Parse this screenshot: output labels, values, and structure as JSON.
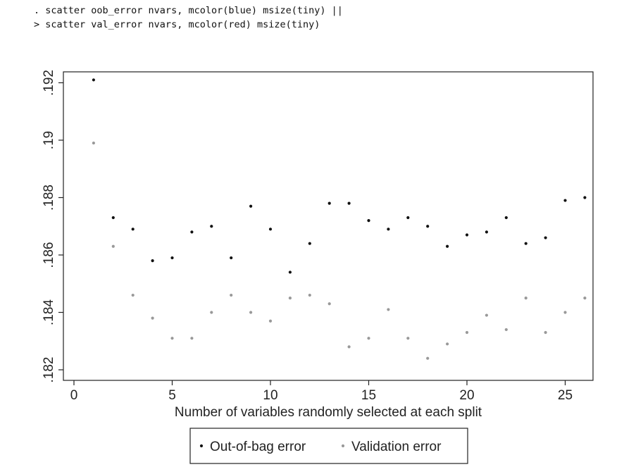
{
  "console": {
    "line1": ". scatter oob_error nvars, mcolor(blue) msize(tiny) ||",
    "line2": "> scatter val_error nvars, mcolor(red) msize(tiny)"
  },
  "chart_data": {
    "type": "scatter",
    "xlabel": "Number of variables randomly selected at each split",
    "ylabel": "",
    "xlim": [
      0,
      26
    ],
    "ylim": [
      0.182,
      0.192
    ],
    "xticks": [
      0,
      5,
      10,
      15,
      20,
      25
    ],
    "xtick_labels": [
      "0",
      "5",
      "10",
      "15",
      "20",
      "25"
    ],
    "yticks": [
      0.182,
      0.184,
      0.186,
      0.188,
      0.19,
      0.192
    ],
    "ytick_labels": [
      ".182",
      ".184",
      ".186",
      ".188",
      ".19",
      ".192"
    ],
    "grid": false,
    "legend_position": "bottom",
    "series": [
      {
        "name": "Out-of-bag error",
        "color": "#111111",
        "x": [
          1,
          2,
          3,
          4,
          5,
          6,
          7,
          8,
          9,
          10,
          11,
          12,
          13,
          14,
          15,
          16,
          17,
          18,
          19,
          20,
          21,
          22,
          23,
          24,
          25,
          26
        ],
        "y": [
          0.1921,
          0.1873,
          0.1869,
          0.1858,
          0.1859,
          0.1868,
          0.187,
          0.1859,
          0.1877,
          0.1869,
          0.1854,
          0.1864,
          0.1878,
          0.1878,
          0.1872,
          0.1869,
          0.1873,
          0.187,
          0.1863,
          0.1867,
          0.1868,
          0.1873,
          0.1864,
          0.1866,
          0.1879,
          0.188
        ]
      },
      {
        "name": "Validation error",
        "color": "#999999",
        "x": [
          1,
          2,
          3,
          4,
          5,
          6,
          7,
          8,
          9,
          10,
          11,
          12,
          13,
          14,
          15,
          16,
          17,
          18,
          19,
          20,
          21,
          22,
          23,
          24,
          25,
          26
        ],
        "y": [
          0.1899,
          0.1863,
          0.1846,
          0.1838,
          0.1831,
          0.1831,
          0.184,
          0.1846,
          0.184,
          0.1837,
          0.1845,
          0.1846,
          0.1843,
          0.1828,
          0.1831,
          0.1841,
          0.1831,
          0.1824,
          0.1829,
          0.1833,
          0.1839,
          0.1834,
          0.1845,
          0.1833,
          0.184,
          0.1845
        ]
      }
    ]
  }
}
